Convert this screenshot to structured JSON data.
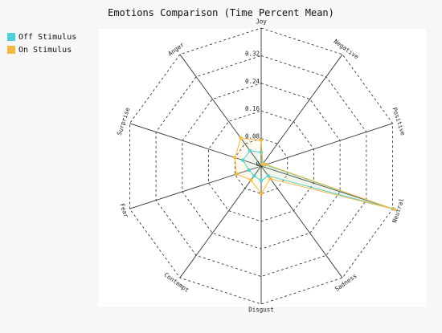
{
  "chart_data": {
    "type": "radar",
    "title": "Emotions Comparison (Time Percent Mean)",
    "axes": [
      "Joy",
      "Negative",
      "Positive",
      "Neutral",
      "Sadness",
      "Disgust",
      "Contempt",
      "Fear",
      "Surprise",
      "Anger"
    ],
    "radial_ticks": [
      "0",
      "0.08",
      "0.16",
      "0.24",
      "0.32"
    ],
    "radial_range": [
      0,
      0.4
    ],
    "grid": true,
    "legend_position": "top-left",
    "series": [
      {
        "name": "Off Stimulus",
        "color": "#4dd0d8",
        "values": [
          0.04,
          0.01,
          0.012,
          0.4,
          0.035,
          0.042,
          0.035,
          0.037,
          0.056,
          0.055
        ]
      },
      {
        "name": "On Stimulus",
        "color": "#f5b942",
        "values": [
          0.075,
          0.007,
          0.015,
          0.405,
          0.045,
          0.08,
          0.05,
          0.075,
          0.08,
          0.1
        ]
      }
    ]
  }
}
